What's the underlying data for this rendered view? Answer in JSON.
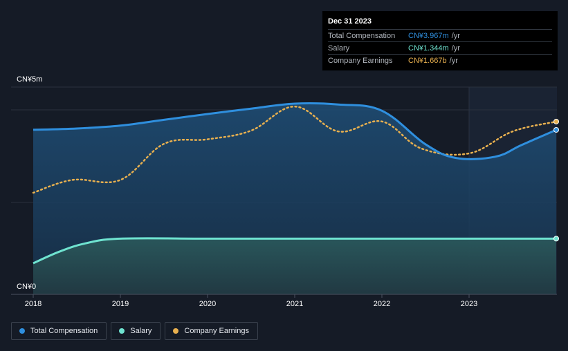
{
  "chart_data": {
    "type": "area",
    "title": "",
    "currency_label_top": "CN¥5m",
    "currency_label_bottom": "CN¥0",
    "ylim": [
      0,
      5
    ],
    "y_unit": "CN¥m",
    "xlim": [
      2018,
      2024.0
    ],
    "x_ticks": [
      "2018",
      "2019",
      "2020",
      "2021",
      "2022",
      "2023"
    ],
    "series": [
      {
        "name": "Total Compensation",
        "color": "#2f8fde",
        "points": [
          [
            2018.0,
            3.97
          ],
          [
            2018.5,
            4.0
          ],
          [
            2019.0,
            4.07
          ],
          [
            2019.5,
            4.21
          ],
          [
            2020.0,
            4.35
          ],
          [
            2020.5,
            4.48
          ],
          [
            2021.0,
            4.6
          ],
          [
            2021.5,
            4.58
          ],
          [
            2022.0,
            4.43
          ],
          [
            2022.5,
            3.62
          ],
          [
            2022.85,
            3.29
          ],
          [
            2023.3,
            3.32
          ],
          [
            2023.6,
            3.6
          ],
          [
            2024.0,
            3.967
          ]
        ]
      },
      {
        "name": "Salary",
        "color": "#6fe3d0",
        "points": [
          [
            2018.0,
            0.75
          ],
          [
            2018.3,
            1.03
          ],
          [
            2018.6,
            1.23
          ],
          [
            2019.0,
            1.344
          ],
          [
            2020.0,
            1.344
          ],
          [
            2021.0,
            1.344
          ],
          [
            2022.0,
            1.344
          ],
          [
            2023.0,
            1.344
          ],
          [
            2024.0,
            1.344
          ]
        ]
      },
      {
        "name": "Company Earnings",
        "color": "#e8b04f",
        "dashed": true,
        "points": [
          [
            2018.0,
            2.45
          ],
          [
            2018.45,
            2.76
          ],
          [
            2019.0,
            2.76
          ],
          [
            2019.5,
            3.63
          ],
          [
            2020.0,
            3.74
          ],
          [
            2020.5,
            3.95
          ],
          [
            2021.0,
            4.53
          ],
          [
            2021.5,
            3.93
          ],
          [
            2022.0,
            4.17
          ],
          [
            2022.45,
            3.52
          ],
          [
            2023.0,
            3.4
          ],
          [
            2023.5,
            3.93
          ],
          [
            2024.0,
            4.167
          ]
        ]
      }
    ],
    "forecast_start": 2023.0
  },
  "tooltip": {
    "date": "Dec 31 2023",
    "rows": [
      {
        "label": "Total Compensation",
        "value": "CN¥3.967m",
        "unit": "/yr",
        "color": "#2f8fde"
      },
      {
        "label": "Salary",
        "value": "CN¥1.344m",
        "unit": "/yr",
        "color": "#6fe3d0"
      },
      {
        "label": "Company Earnings",
        "value": "CN¥1.667b",
        "unit": "/yr",
        "color": "#e8b04f"
      }
    ]
  },
  "legend": [
    {
      "label": "Total Compensation",
      "color": "#2f8fde"
    },
    {
      "label": "Salary",
      "color": "#6fe3d0"
    },
    {
      "label": "Company Earnings",
      "color": "#e8b04f"
    }
  ]
}
